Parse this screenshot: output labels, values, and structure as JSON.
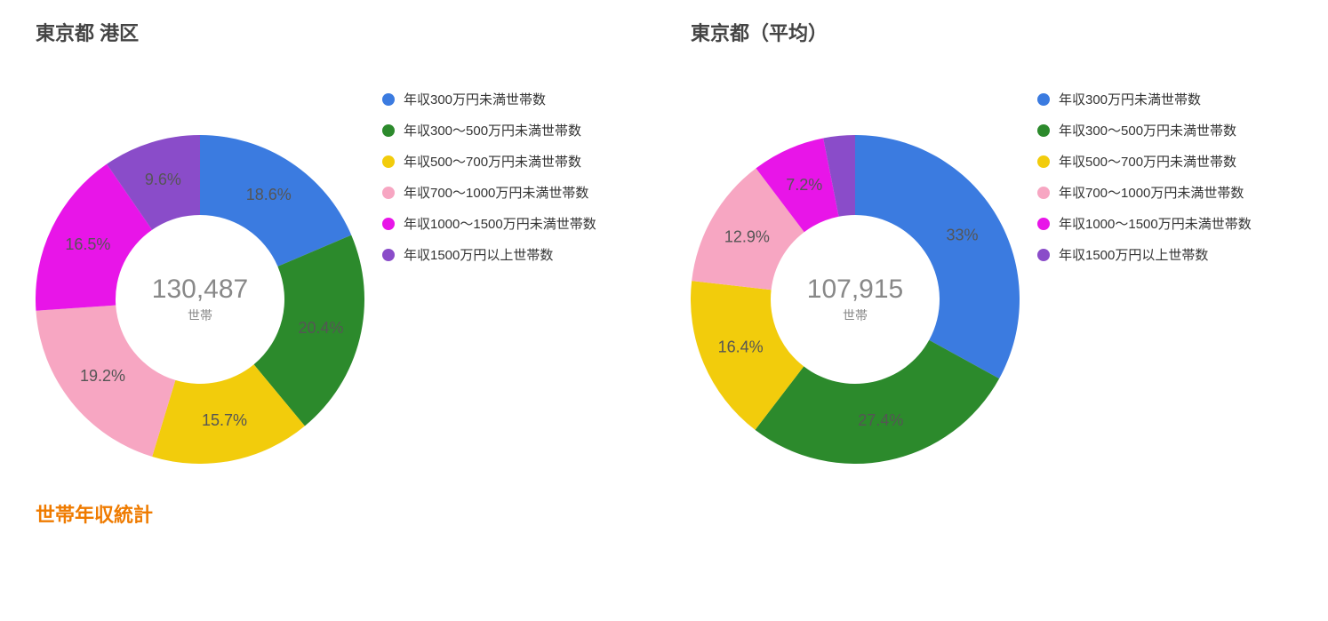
{
  "section_subtitle": "世帯年収統計",
  "legend_labels": [
    "年収300万円未満世帯数",
    "年収300～500万円未満世帯数",
    "年収500～700万円未満世帯数",
    "年収700～1000万円未満世帯数",
    "年収1000～1500万円未満世帯数",
    "年収1500万円以上世帯数"
  ],
  "colors": [
    "#3b7be0",
    "#2c8a2c",
    "#f2cc0c",
    "#f7a6c2",
    "#e815e8",
    "#8a4cc9"
  ],
  "donut": {
    "outer_radius": 185,
    "inner_radius": 95,
    "label_radius": 140,
    "start_angle_deg": -90,
    "svg_size": 370,
    "min_label_percent": 4
  },
  "charts": [
    {
      "title": "東京都 港区",
      "center_value": "130,487",
      "center_unit": "世帯",
      "percents": [
        18.6,
        20.4,
        15.7,
        19.2,
        16.5,
        9.6
      ],
      "show_labels": [
        true,
        true,
        true,
        true,
        true,
        true
      ]
    },
    {
      "title": "東京都（平均）",
      "center_value": "107,915",
      "center_unit": "世帯",
      "percents": [
        33,
        27.4,
        16.4,
        12.9,
        7.2,
        3.1
      ],
      "show_labels": [
        true,
        true,
        true,
        true,
        true,
        false
      ]
    }
  ]
}
